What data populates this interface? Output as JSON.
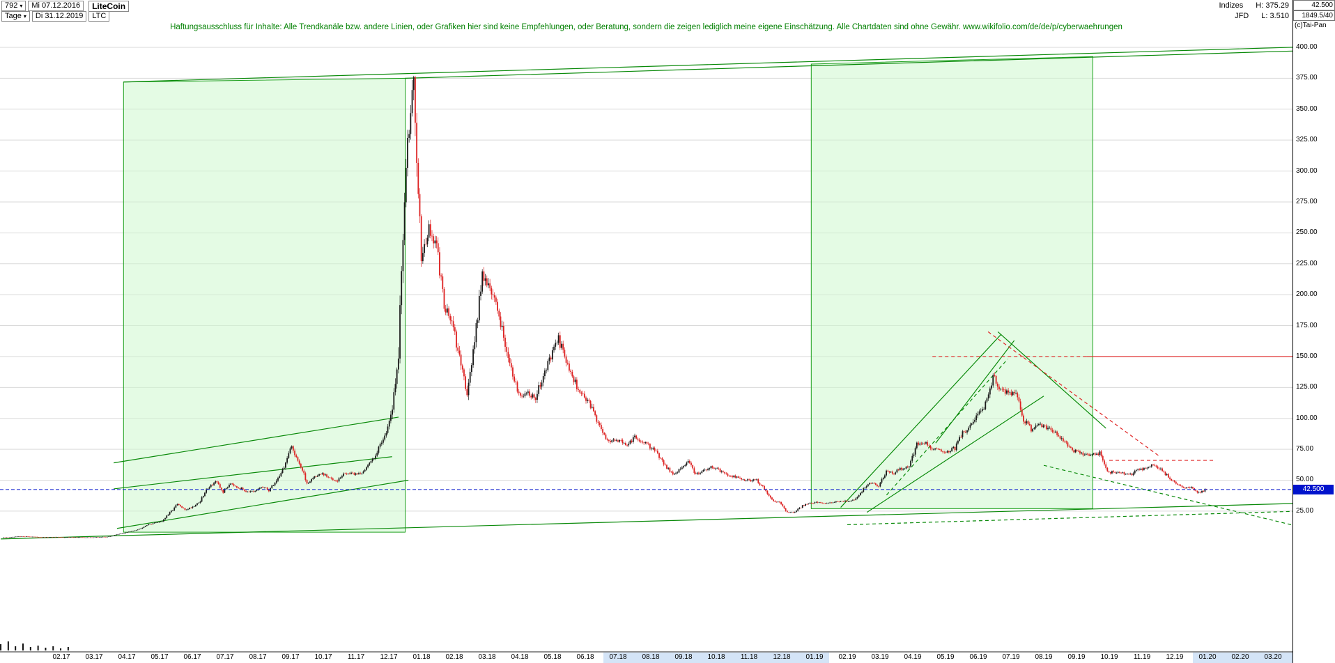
{
  "header": {
    "left": {
      "bars_count": "792",
      "start_date": "Mi 07.12.2016",
      "instrument_name": "LiteCoin",
      "timeframe": "Tage",
      "end_date": "Di 31.12.2019",
      "symbol": "LTC"
    },
    "right": {
      "category": "Indizes",
      "period_high_label": "H: 375.29",
      "source": "JFD",
      "period_low_label": "L: 3.510",
      "scale_top_value": "42.500",
      "info_value": "1849.5/40",
      "copyright": "(c)Tai-Pan"
    }
  },
  "disclaimer_text": "Haftungsausschluss für Inhalte: Alle Trendkanäle bzw. andere Linien, oder Grafiken hier sind keine Empfehlungen, oder Beratung, sondern die zeigen lediglich meine eigene Einschätzung. Alle Chartdaten sind ohne Gewähr.  www.wikifolio.com/de/de/p/cyberwaehrungen",
  "chart_data": {
    "type": "candlestick",
    "instrument": "LiteCoin (LTC)",
    "timeframe": "Tage",
    "date_range": [
      "07.12.2016",
      "31.12.2019"
    ],
    "period_high": 375.29,
    "period_low": 3.51,
    "last_close": 42.5,
    "candle_up_color": "#1a1a1a",
    "candle_down_color": "#dd2222",
    "y_axis": {
      "tick_values": [
        400,
        375,
        350,
        325,
        300,
        275,
        250,
        225,
        200,
        175,
        150,
        125,
        100,
        75,
        50,
        25
      ],
      "tick_labels": [
        "400.00",
        "375.00",
        "350.00",
        "325.00",
        "300.00",
        "275.00",
        "250.00",
        "225.00",
        "200.00",
        "175.00",
        "150.00",
        "125.00",
        "100.00",
        "75.00",
        "50.00",
        "25.00"
      ]
    },
    "x_tick_labels": [
      "02.17",
      "03.17",
      "04.17",
      "05.17",
      "06.17",
      "07.17",
      "08.17",
      "09.17",
      "10.17",
      "11.17",
      "12.17",
      "01.18",
      "02.18",
      "03.18",
      "04.18",
      "05.18",
      "06.18",
      "07.18",
      "08.18",
      "09.18",
      "10.18",
      "11.18",
      "12.18",
      "01.19",
      "02.19",
      "03.19",
      "04.19",
      "05.19",
      "06.19",
      "07.19",
      "08.19",
      "09.19",
      "10.19",
      "11.19",
      "12.19",
      "01.20",
      "02.20",
      "03.20"
    ],
    "series_start_month_index": -1.81,
    "series_end_month_index": 34.97,
    "weekly_closes": [
      3.6,
      3.8,
      4.4,
      4.5,
      4.3,
      3.9,
      3.9,
      4.1,
      3.8,
      3.9,
      3.8,
      3.7,
      3.8,
      4.1,
      4.3,
      6.0,
      7.2,
      8.8,
      10.5,
      13.8,
      15.4,
      17.0,
      23.5,
      30.5,
      26.0,
      28.5,
      33.0,
      44.0,
      49.0,
      40.5,
      48.0,
      44.0,
      41.5,
      40.0,
      44.5,
      42.0,
      49.5,
      61.0,
      77.0,
      64.0,
      47.5,
      53.0,
      55.0,
      51.5,
      50.0,
      55.5,
      55.0,
      55.5,
      61.5,
      71.0,
      84.0,
      99.0,
      152.0,
      310.0,
      370.0,
      232.0,
      252.0,
      238.0,
      192.0,
      178.0,
      148.0,
      122.0,
      162.0,
      218.0,
      205.0,
      188.0,
      161.0,
      132.0,
      119.0,
      121.0,
      116.0,
      136.0,
      149.0,
      164.0,
      146.0,
      131.0,
      119.0,
      113.0,
      99.0,
      86.0,
      81.0,
      83.0,
      78.0,
      85.0,
      81.0,
      77.0,
      71.0,
      62.0,
      54.0,
      59.0,
      66.0,
      55.0,
      58.0,
      61.0,
      58.5,
      55.0,
      53.0,
      51.0,
      49.5,
      50.0,
      43.0,
      34.0,
      31.5,
      24.5,
      24.0,
      29.5,
      31.0,
      32.5,
      31.5,
      32.0,
      33.5,
      33.0,
      34.5,
      43.0,
      47.5,
      45.5,
      57.5,
      56.0,
      59.5,
      60.5,
      79.0,
      81.0,
      76.0,
      74.0,
      73.0,
      76.0,
      88.5,
      93.0,
      104.0,
      111.0,
      134.0,
      123.0,
      121.0,
      119.0,
      99.5,
      91.0,
      95.5,
      93.0,
      89.0,
      84.0,
      76.0,
      72.5,
      70.5,
      70.0,
      72.0,
      56.5,
      56.5,
      55.5,
      54.5,
      58.0,
      59.0,
      62.0,
      58.5,
      53.0,
      47.5,
      44.5,
      43.5,
      40.0,
      42.5
    ],
    "last_price_line": {
      "value": 42.5,
      "color": "#0013cc",
      "style": "dashed",
      "label": "42.500"
    },
    "green_boxes": [
      {
        "name": "trend-box-2017",
        "left_m": 1.9,
        "right_m": 10.5,
        "top_left_p": 372,
        "top_right_p": 375,
        "bottom_p": 8
      },
      {
        "name": "trend-box-2019",
        "left_m": 22.9,
        "right_m": 31.5,
        "top_left_p": 386.5,
        "top_right_p": 392.5,
        "bottom_p": 27
      }
    ],
    "trend_lines": [
      {
        "name": "upper-trend-full",
        "color": "green",
        "style": "solid",
        "from_m": 1.9,
        "from_p": 372,
        "to_m": 38.8,
        "to_p": 401
      },
      {
        "name": "upper-trend-2",
        "color": "green",
        "style": "solid",
        "from_m": 10.5,
        "from_p": 375,
        "to_m": 38.8,
        "to_p": 398
      },
      {
        "name": "lower-trend-full",
        "color": "green",
        "style": "solid",
        "from_m": -1.85,
        "from_p": 2.5,
        "to_m": 38.8,
        "to_p": 32
      },
      {
        "name": "support-2017",
        "color": "green",
        "style": "solid",
        "from_m": 1.7,
        "from_p": 11,
        "to_m": 10.6,
        "to_p": 50
      },
      {
        "name": "channel-2017-upper",
        "color": "green",
        "style": "solid",
        "from_m": 1.6,
        "from_p": 64,
        "to_m": 10.3,
        "to_p": 101
      },
      {
        "name": "channel-2017-lower",
        "color": "green",
        "style": "solid",
        "from_m": 1.6,
        "from_p": 43,
        "to_m": 10.1,
        "to_p": 69
      },
      {
        "name": "rise-2019-a",
        "color": "green",
        "style": "solid",
        "from_m": 23.8,
        "from_p": 28,
        "to_m": 28.7,
        "to_p": 168
      },
      {
        "name": "rise-2019-b",
        "color": "green",
        "style": "solid",
        "from_m": 24.6,
        "from_p": 24,
        "to_m": 30.0,
        "to_p": 118
      },
      {
        "name": "rise-2019-c",
        "color": "green",
        "style": "solid",
        "from_m": 26.7,
        "from_p": 80,
        "to_m": 29.1,
        "to_p": 163
      },
      {
        "name": "rise-2019-dashed",
        "color": "green",
        "style": "dashed",
        "from_m": 25.2,
        "from_p": 38,
        "to_m": 28.9,
        "to_p": 148
      },
      {
        "name": "fall-2019-wedge",
        "color": "green",
        "style": "solid",
        "from_m": 28.6,
        "from_p": 170,
        "to_m": 31.9,
        "to_p": 92
      },
      {
        "name": "fall-2019-red-dashed",
        "color": "red",
        "style": "dashed",
        "from_m": 28.3,
        "from_p": 170,
        "to_m": 33.5,
        "to_p": 70
      },
      {
        "name": "resistance-150-dashed",
        "color": "red",
        "style": "dashed",
        "from_m": 26.6,
        "from_p": 150,
        "to_m": 31.3,
        "to_p": 150
      },
      {
        "name": "resistance-150-solid",
        "color": "red",
        "style": "solid",
        "from_m": 31.3,
        "from_p": 150,
        "to_m": 37.9,
        "to_p": 150
      },
      {
        "name": "support-66-red-dashed",
        "color": "red",
        "style": "dashed",
        "from_m": 32.0,
        "from_p": 66,
        "to_m": 35.2,
        "to_p": 66
      },
      {
        "name": "fall-late-2019-green-dashed",
        "color": "green",
        "style": "dashed",
        "from_m": 30.0,
        "from_p": 62,
        "to_m": 38.5,
        "to_p": 8
      },
      {
        "name": "bottom-green-dashed",
        "color": "green",
        "style": "dashed",
        "from_m": 24.0,
        "from_p": 14,
        "to_m": 38.5,
        "to_p": 25.5
      }
    ],
    "x_label_highlight_ranges_m": [
      [
        16.55,
        23.45
      ],
      [
        34.55,
        38.0
      ]
    ],
    "volume_spikes": [
      [
        -1.85,
        9
      ],
      [
        -1.62,
        13
      ],
      [
        -1.4,
        6
      ],
      [
        -1.17,
        10
      ],
      [
        -0.94,
        5
      ],
      [
        -0.71,
        7
      ],
      [
        -0.48,
        4
      ],
      [
        -0.25,
        6
      ],
      [
        -0.02,
        3
      ],
      [
        0.21,
        5
      ]
    ]
  }
}
